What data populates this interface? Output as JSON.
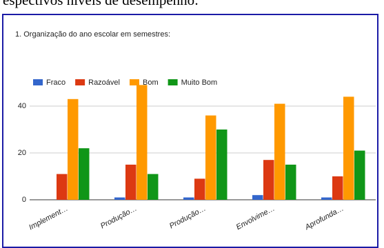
{
  "document_text": "espectivos níveis de desempenho:",
  "chart_data": {
    "type": "bar",
    "title": "1. Organização do ano escolar em semestres:",
    "categories": [
      "Implement…",
      "Produção…",
      "Produção…",
      "Envolvime…",
      "Aprofunda…"
    ],
    "series": [
      {
        "name": "Fraco",
        "color": "#3366cc",
        "values": [
          0,
          1,
          1,
          2,
          1
        ]
      },
      {
        "name": "Razoável",
        "color": "#dc3912",
        "values": [
          11,
          15,
          9,
          17,
          10
        ]
      },
      {
        "name": "Bom",
        "color": "#ff9900",
        "values": [
          43,
          49,
          36,
          41,
          44
        ]
      },
      {
        "name": "Muito Bom",
        "color": "#109618",
        "values": [
          22,
          11,
          30,
          15,
          21
        ]
      }
    ],
    "ylim": [
      0,
      50
    ],
    "yticks": [
      0,
      20,
      40
    ],
    "grid": true,
    "legend": "top"
  }
}
